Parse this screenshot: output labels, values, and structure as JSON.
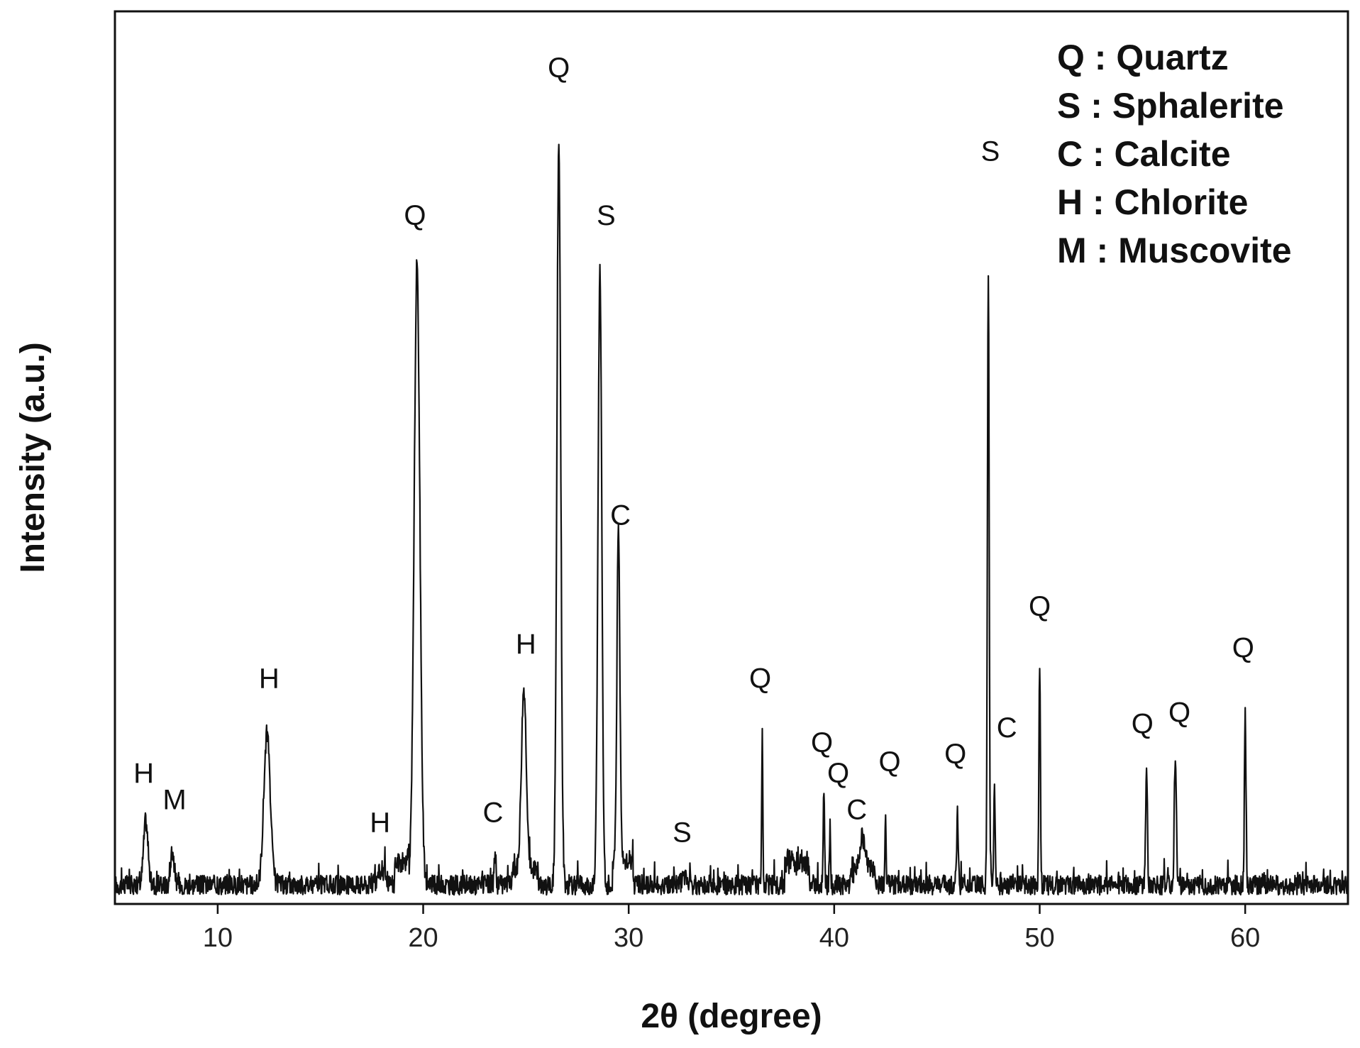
{
  "chart_data": {
    "type": "line",
    "title": "",
    "xlabel": "2θ (degree)",
    "ylabel": "Intensity (a.u.)",
    "xlim": [
      5,
      65
    ],
    "ylim": [
      0,
      100
    ],
    "xticks": [
      10,
      20,
      30,
      40,
      50,
      60
    ],
    "grid": false,
    "legend_position": "top-right",
    "legend": [
      {
        "symbol": "Q",
        "phase": "Quartz",
        "text": "Q : Quartz"
      },
      {
        "symbol": "S",
        "phase": "Sphalerite",
        "text": "S : Sphalerite"
      },
      {
        "symbol": "C",
        "phase": "Calcite",
        "text": "C : Calcite"
      },
      {
        "symbol": "H",
        "phase": "Chlorite",
        "text": "H : Chlorite"
      },
      {
        "symbol": "M",
        "phase": "Muscovite",
        "text": "M : Muscovite"
      }
    ],
    "baseline": 2.5,
    "peaks": [
      {
        "x": 6.5,
        "y": 11,
        "w": 0.15,
        "label": "H"
      },
      {
        "x": 7.8,
        "y": 7,
        "w": 0.12,
        "label": "M"
      },
      {
        "x": 12.4,
        "y": 22.5,
        "w": 0.22,
        "label": "H"
      },
      {
        "x": 18.0,
        "y": 4.5,
        "w": 0.25,
        "label": "H"
      },
      {
        "x": 19.7,
        "y": 83.5,
        "w": 0.2,
        "label": "Q"
      },
      {
        "x": 23.5,
        "y": 7,
        "w": 0.06,
        "label": "C"
      },
      {
        "x": 24.9,
        "y": 26.5,
        "w": 0.17,
        "label": "H"
      },
      {
        "x": 26.6,
        "y": 100,
        "w": 0.13,
        "label": "Q"
      },
      {
        "x": 28.6,
        "y": 83.5,
        "w": 0.13,
        "label": "S"
      },
      {
        "x": 29.5,
        "y": 47,
        "w": 0.1,
        "label": "C"
      },
      {
        "x": 32.7,
        "y": 3.5,
        "w": 0.15,
        "label": "S"
      },
      {
        "x": 36.5,
        "y": 23,
        "w": 0.04,
        "label": "Q"
      },
      {
        "x": 39.5,
        "y": 15,
        "w": 0.05,
        "label": "Q"
      },
      {
        "x": 39.8,
        "y": 10.5,
        "w": 0.04,
        "label": "Q"
      },
      {
        "x": 41.4,
        "y": 6,
        "w": 0.2,
        "label": "C"
      },
      {
        "x": 42.5,
        "y": 12.5,
        "w": 0.04,
        "label": "Q"
      },
      {
        "x": 46.0,
        "y": 12.5,
        "w": 0.05,
        "label": "Q"
      },
      {
        "x": 47.5,
        "y": 83.5,
        "w": 0.06,
        "label": "S"
      },
      {
        "x": 47.8,
        "y": 15,
        "w": 0.05,
        "label": "C"
      },
      {
        "x": 50.0,
        "y": 32,
        "w": 0.05,
        "label": "Q"
      },
      {
        "x": 55.2,
        "y": 18,
        "w": 0.06,
        "label": "Q"
      },
      {
        "x": 56.6,
        "y": 19.5,
        "w": 0.07,
        "label": "Q"
      },
      {
        "x": 60.0,
        "y": 26.5,
        "w": 0.05,
        "label": "Q"
      }
    ],
    "annotations": [
      {
        "text": "H",
        "x": 6.4,
        "y": 16
      },
      {
        "text": "M",
        "x": 7.9,
        "y": 12.5
      },
      {
        "text": "H",
        "x": 12.5,
        "y": 28.5
      },
      {
        "text": "H",
        "x": 17.9,
        "y": 9.5
      },
      {
        "text": "Q",
        "x": 19.6,
        "y": 89.5
      },
      {
        "text": "C",
        "x": 23.4,
        "y": 10.8
      },
      {
        "text": "H",
        "x": 25.0,
        "y": 33
      },
      {
        "text": "Q",
        "x": 26.6,
        "y": 109
      },
      {
        "text": "S",
        "x": 28.9,
        "y": 89.5
      },
      {
        "text": "C",
        "x": 29.6,
        "y": 50
      },
      {
        "text": "S",
        "x": 32.6,
        "y": 8.2
      },
      {
        "text": "Q",
        "x": 36.4,
        "y": 28.5
      },
      {
        "text": "Q",
        "x": 39.4,
        "y": 20
      },
      {
        "text": "Q",
        "x": 40.2,
        "y": 16
      },
      {
        "text": "C",
        "x": 41.1,
        "y": 11.2
      },
      {
        "text": "Q",
        "x": 42.7,
        "y": 17.5
      },
      {
        "text": "Q",
        "x": 45.9,
        "y": 18.5
      },
      {
        "text": "S",
        "x": 47.6,
        "y": 98
      },
      {
        "text": "C",
        "x": 48.4,
        "y": 22
      },
      {
        "text": "Q",
        "x": 50.0,
        "y": 38
      },
      {
        "text": "Q",
        "x": 55.0,
        "y": 22.5
      },
      {
        "text": "Q",
        "x": 56.8,
        "y": 24
      },
      {
        "text": "Q",
        "x": 59.9,
        "y": 32.5
      }
    ]
  }
}
